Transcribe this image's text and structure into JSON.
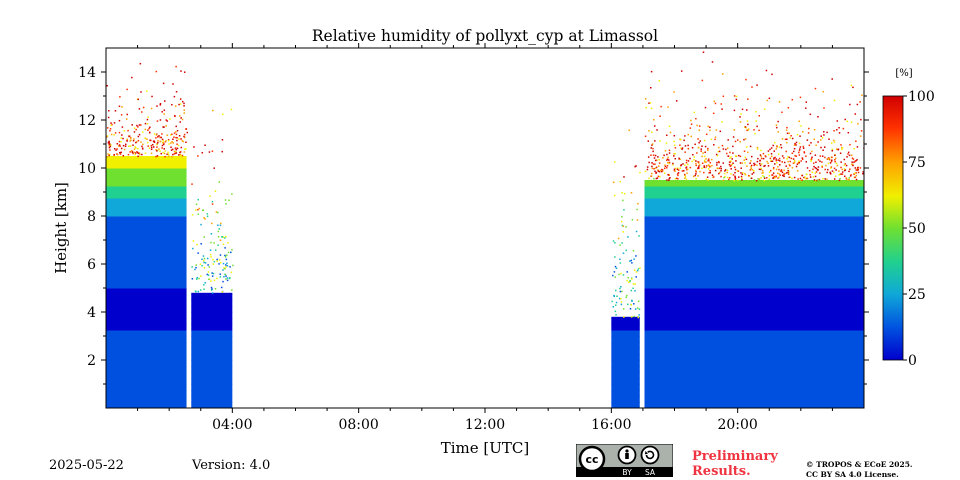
{
  "chart_data": {
    "type": "heatmap",
    "title": "Relative humidity of pollyxt_cyp at Limassol",
    "xlabel": "Time [UTC]",
    "ylabel": "Height [km]",
    "x_ticks": [
      "04:00",
      "08:00",
      "12:00",
      "16:00",
      "20:00"
    ],
    "y_ticks": [
      "2",
      "4",
      "6",
      "8",
      "10",
      "12",
      "14"
    ],
    "xlim_hours": [
      0,
      24
    ],
    "ylim_km": [
      0,
      15
    ],
    "colorbar": {
      "unit": "[%]",
      "ticks": [
        "0",
        "25",
        "50",
        "75",
        "100"
      ],
      "range": [
        0,
        100
      ],
      "colormap": [
        "#0000cc",
        "#0050e0",
        "#10a8d8",
        "#20d090",
        "#70e030",
        "#f0f000",
        "#ffa000",
        "#ff3000",
        "#d00000"
      ]
    },
    "data_periods_utc": [
      {
        "start": 0.0,
        "end": 2.55,
        "top_km": 10.5,
        "note": "dense"
      },
      {
        "start": 2.7,
        "end": 4.0,
        "top_km": 4.8,
        "note": "dense"
      },
      {
        "start": 16.0,
        "end": 16.9,
        "top_km": 3.8,
        "note": "dense"
      },
      {
        "start": 17.05,
        "end": 24.0,
        "top_km": 9.5,
        "note": "dense"
      }
    ],
    "profile_rh_percent": [
      {
        "height_km": 0.5,
        "rh": 18
      },
      {
        "height_km": 2.0,
        "rh": 8
      },
      {
        "height_km": 4.0,
        "rh": 5
      },
      {
        "height_km": 6.0,
        "rh": 8
      },
      {
        "height_km": 8.0,
        "rh": 20
      },
      {
        "height_km": 10.0,
        "rh": 60
      }
    ],
    "grid": false
  },
  "footer": {
    "date": "2025-05-22",
    "version": "Version: 4.0",
    "license_badge": {
      "cc": "cc",
      "by": "BY",
      "sa": "SA"
    },
    "preliminary_line1": "Preliminary",
    "preliminary_line2": "Results.",
    "copyright_line1": "© TROPOS & ECoE 2025.",
    "copyright_line2": "CC BY SA 4.0 License."
  }
}
